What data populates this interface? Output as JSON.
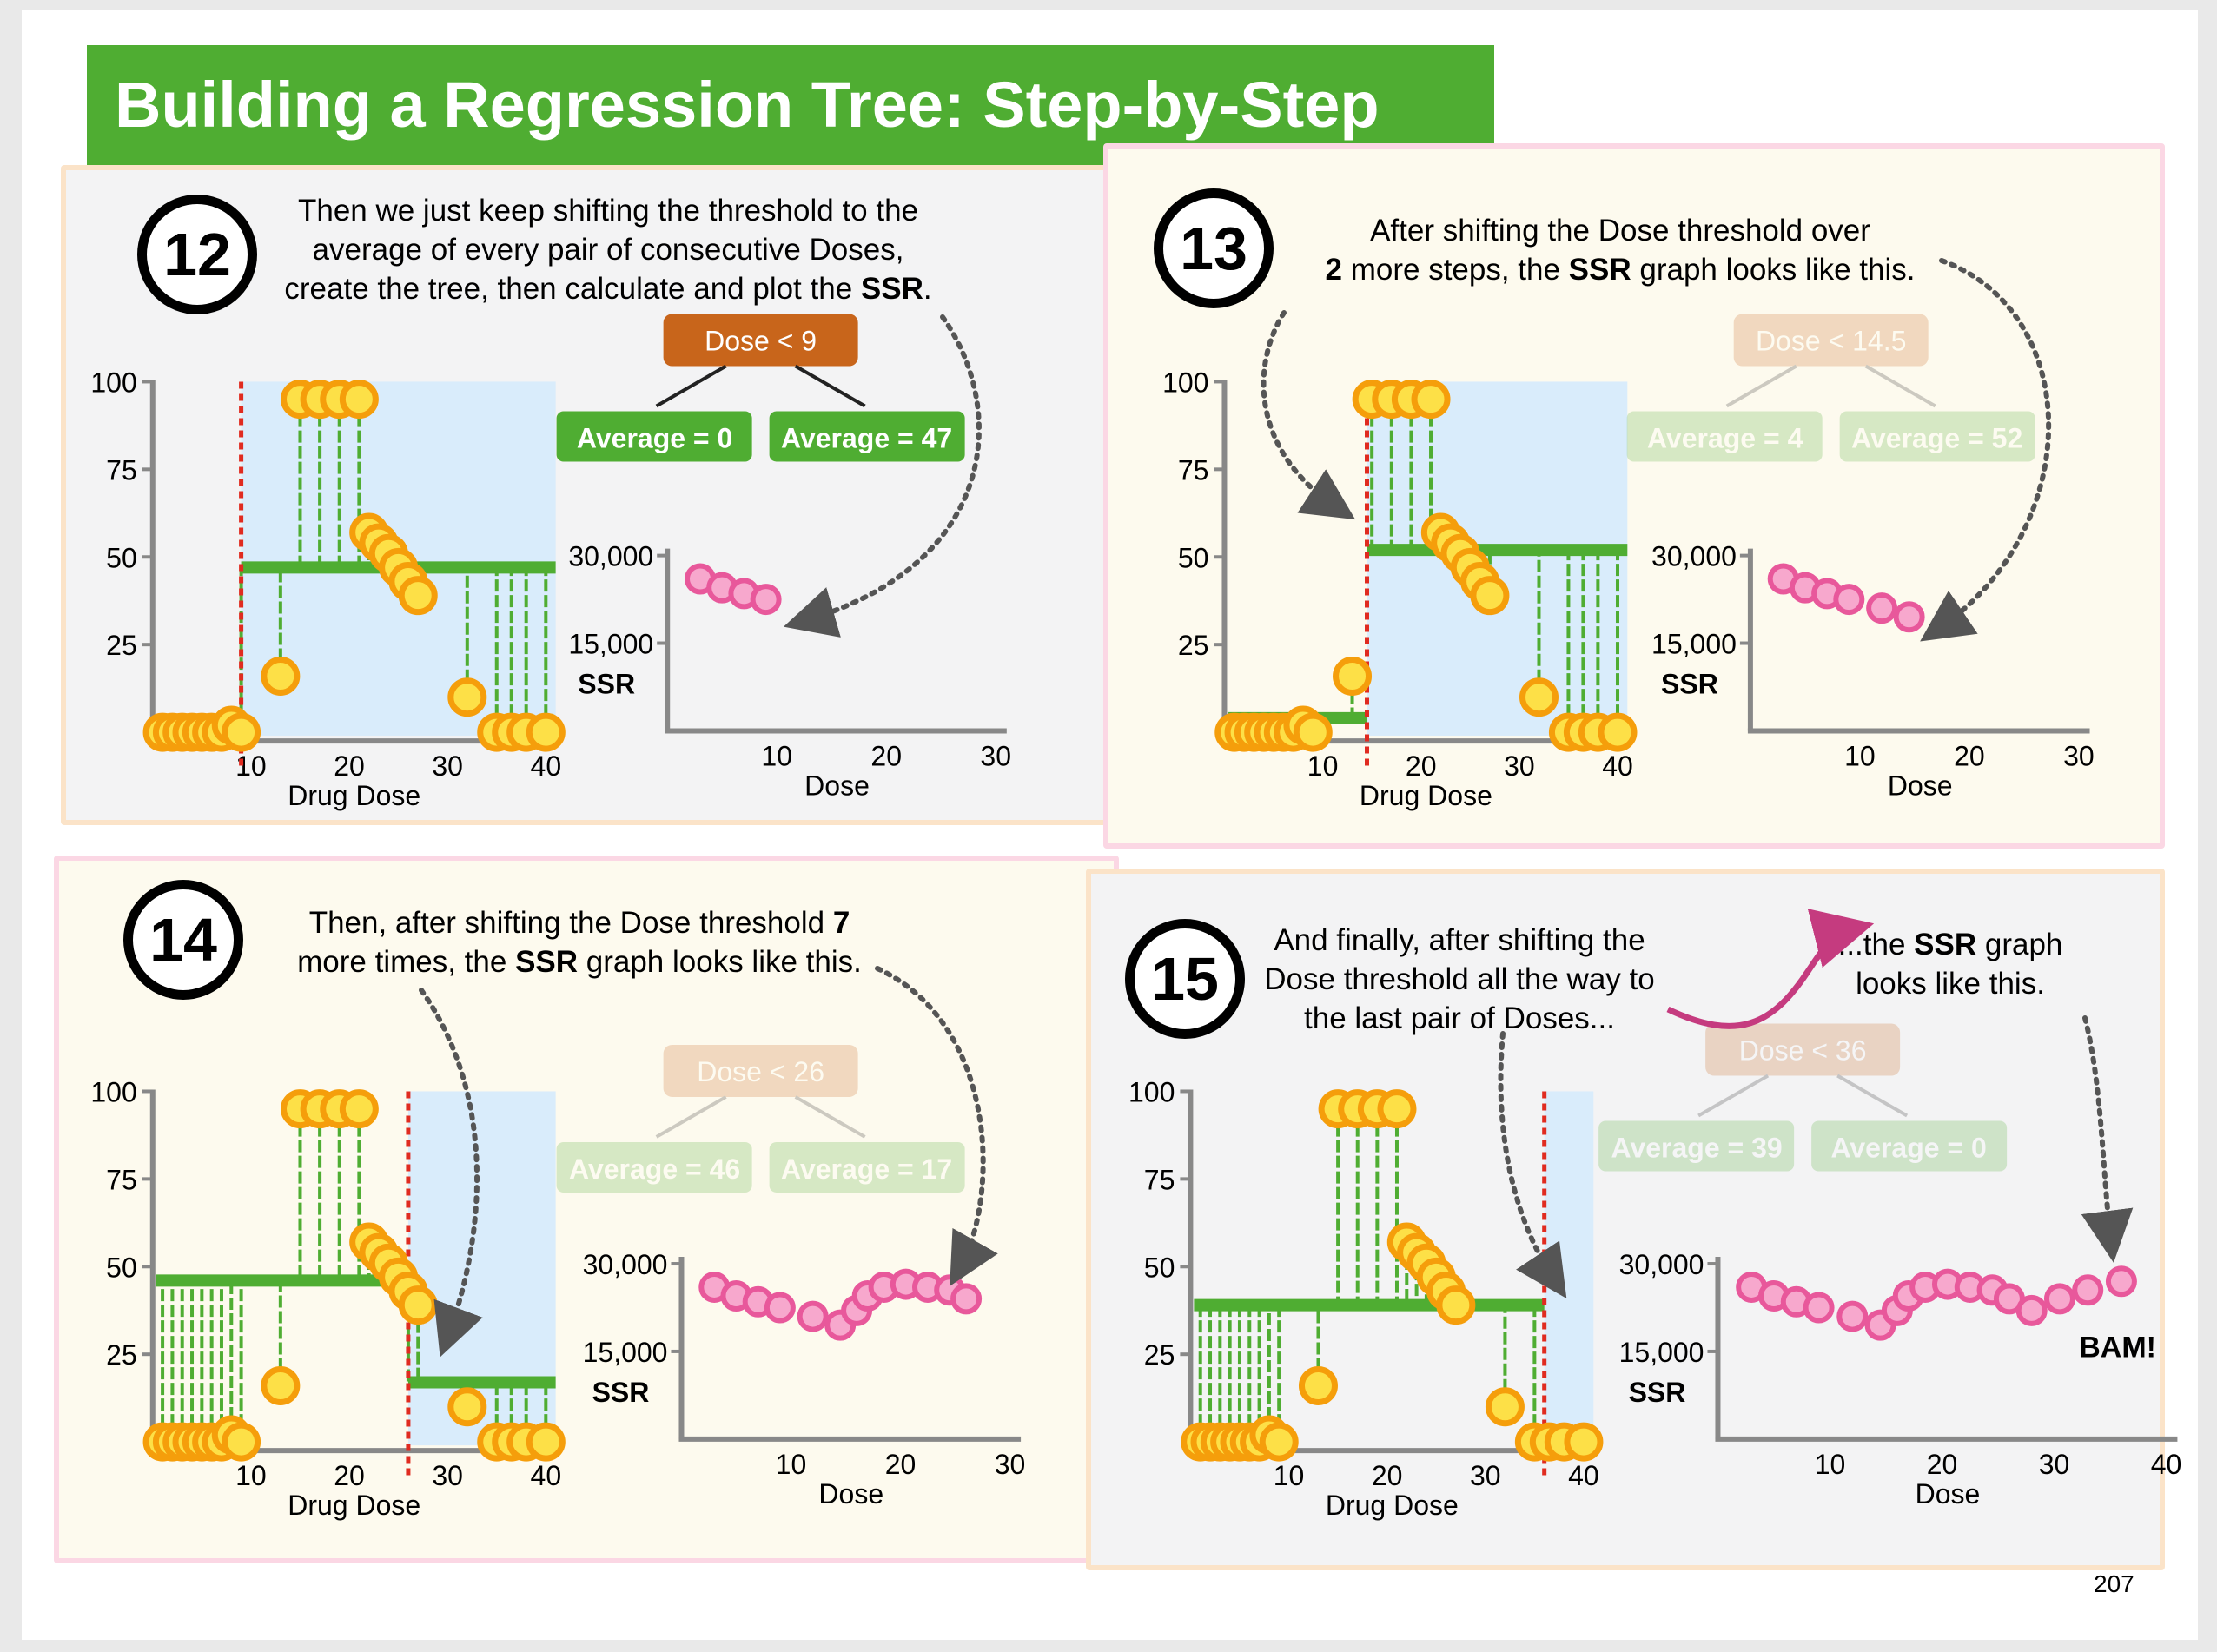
{
  "title": "Building a Regression Tree: Step-by-Step",
  "page_number": "207",
  "labels": {
    "drug_dose": "Drug Dose",
    "dose": "Dose",
    "ssr": "SSR"
  },
  "colors": {
    "title_green": "#4fad32",
    "tree_green": "#4fad32",
    "root_orange": "#c8651b",
    "ssr_pink": "#e8589b",
    "dot_yellow": "#fde047",
    "dot_orange": "#f59e0b",
    "threshold_red": "#e02b20",
    "highlight_blue": "#d9ecfb"
  },
  "panels": [
    {
      "step": "12",
      "caption": {
        "line1": "Then we just keep shifting the threshold to the",
        "line2": "average of every pair of consecutive Doses,",
        "line3_pre": "create the tree, then calculate and plot the ",
        "line3_bold": "SSR",
        "line3_post": "."
      },
      "tree": {
        "root": "Dose < 9",
        "left": "Average = 0",
        "right": "Average = 47",
        "faded": false
      },
      "threshold": 9,
      "left_mean": 0,
      "right_mean": 47,
      "ssr_points": [
        [
          3,
          26000
        ],
        [
          5,
          24500
        ],
        [
          7,
          23500
        ],
        [
          9,
          22500
        ]
      ]
    },
    {
      "step": "13",
      "caption": {
        "line1": "After shifting the Dose threshold over",
        "line2_bold": "2",
        "line2_mid": " more steps, the ",
        "line2_bold2": "SSR",
        "line2_post": " graph looks like this."
      },
      "tree": {
        "root": "Dose < 14.5",
        "left": "Average = 4",
        "right": "Average = 52",
        "faded": true
      },
      "threshold": 14.5,
      "left_mean": 4,
      "right_mean": 52,
      "ssr_points": [
        [
          3,
          26000
        ],
        [
          5,
          24500
        ],
        [
          7,
          23500
        ],
        [
          9,
          22500
        ],
        [
          12,
          21000
        ],
        [
          14.5,
          19500
        ]
      ]
    },
    {
      "step": "14",
      "caption": {
        "line1_pre": "Then, after shifting the Dose threshold ",
        "line1_bold": "7",
        "line2_pre": "more times, the ",
        "line2_bold": "SSR",
        "line2_post": " graph looks like this."
      },
      "tree": {
        "root": "Dose < 26",
        "left": "Average = 46",
        "right": "Average = 17",
        "faded": true
      },
      "threshold": 26,
      "left_mean": 46,
      "right_mean": 17,
      "ssr_points": [
        [
          3,
          26000
        ],
        [
          5,
          24500
        ],
        [
          7,
          23500
        ],
        [
          9,
          22500
        ],
        [
          12,
          21000
        ],
        [
          14.5,
          19500
        ],
        [
          16,
          22000
        ],
        [
          17,
          24500
        ],
        [
          18.5,
          26000
        ],
        [
          20.5,
          26500
        ],
        [
          22.5,
          26000
        ],
        [
          24.5,
          25500
        ],
        [
          26,
          24000
        ]
      ]
    },
    {
      "step": "15",
      "caption": {
        "line1": "And finally, after shifting the",
        "line2": "Dose threshold all the way to",
        "line3": "the last pair of Doses..."
      },
      "caption2": {
        "line1_pre": "...the ",
        "line1_bold": "SSR",
        "line1_post": " graph",
        "line2": "looks like this."
      },
      "bam": "BAM!",
      "tree": {
        "root": "Dose < 36",
        "left": "Average = 39",
        "right": "Average = 0",
        "faded": true
      },
      "threshold": 36,
      "left_mean": 39,
      "right_mean": 0,
      "ssr_points": [
        [
          3,
          26000
        ],
        [
          5,
          24500
        ],
        [
          7,
          23500
        ],
        [
          9,
          22500
        ],
        [
          12,
          21000
        ],
        [
          14.5,
          19500
        ],
        [
          16,
          22000
        ],
        [
          17,
          24500
        ],
        [
          18.5,
          26000
        ],
        [
          20.5,
          26500
        ],
        [
          22.5,
          26000
        ],
        [
          24.5,
          25500
        ],
        [
          26,
          24000
        ],
        [
          28,
          22000
        ],
        [
          30.5,
          24000
        ],
        [
          33,
          25500
        ],
        [
          36,
          27000
        ]
      ]
    }
  ],
  "chart_data": [
    {
      "type": "scatter",
      "title": "",
      "xlabel": "Drug Dose",
      "ylabel": "",
      "xticks": [
        10,
        20,
        30,
        40
      ],
      "yticks": [
        25,
        50,
        75,
        100
      ],
      "xlim": [
        0,
        41
      ],
      "ylim": [
        0,
        100
      ],
      "points": [
        [
          1,
          0
        ],
        [
          2,
          0
        ],
        [
          3,
          0
        ],
        [
          4,
          0
        ],
        [
          5,
          0
        ],
        [
          6,
          0
        ],
        [
          7,
          0
        ],
        [
          8,
          2
        ],
        [
          9,
          0
        ],
        [
          13,
          16
        ],
        [
          15,
          95
        ],
        [
          17,
          95
        ],
        [
          19,
          95
        ],
        [
          21,
          95
        ],
        [
          22,
          57
        ],
        [
          23,
          54
        ],
        [
          24,
          51
        ],
        [
          25,
          47
        ],
        [
          26,
          43
        ],
        [
          27,
          39
        ],
        [
          32,
          10
        ],
        [
          35,
          0
        ],
        [
          36.5,
          0
        ],
        [
          38,
          0
        ],
        [
          40,
          0
        ]
      ]
    },
    {
      "type": "scatter",
      "title": "",
      "xlabel": "Dose",
      "ylabel": "SSR",
      "xticks": [
        10,
        20,
        30,
        40
      ],
      "yticks": [
        15000,
        30000
      ],
      "xlim": [
        0,
        41
      ],
      "ylim": [
        0,
        30000
      ]
    }
  ]
}
